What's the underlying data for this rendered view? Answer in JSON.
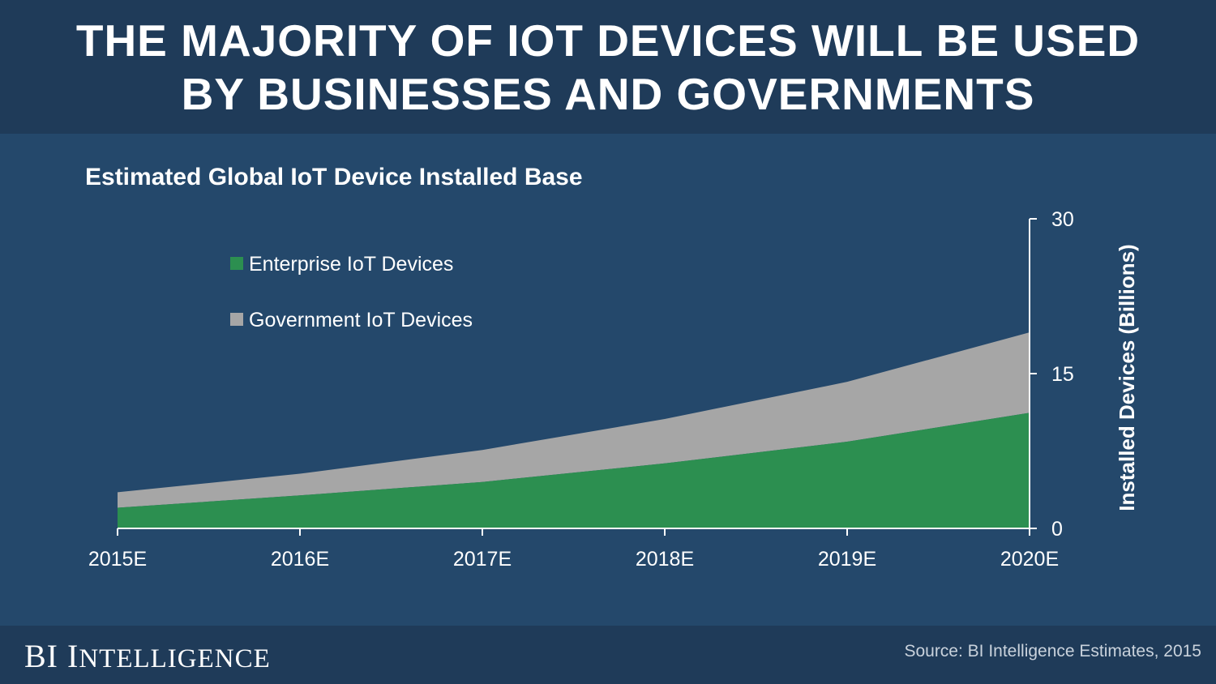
{
  "header": {
    "line1": "THE MAJORITY OF IOT DEVICES WILL BE USED",
    "line2": "BY BUSINESSES AND GOVERNMENTS"
  },
  "footer": {
    "brand_bi": "BI",
    "brand_i": "I",
    "brand_rest": "NTELLIGENCE",
    "source": "Source: BI Intelligence Estimates, 2015"
  },
  "colors": {
    "enterprise": "#2c8f50",
    "government": "#a6a6a6",
    "axis": "#ffffff"
  },
  "chart_data": {
    "type": "area",
    "stacked": true,
    "title": "Estimated Global IoT Device Installed Base",
    "categories": [
      "2015E",
      "2016E",
      "2017E",
      "2018E",
      "2019E",
      "2020E"
    ],
    "series": [
      {
        "name": "Enterprise IoT Devices",
        "values": [
          2.0,
          3.2,
          4.5,
          6.3,
          8.4,
          11.2
        ]
      },
      {
        "name": "Government IoT Devices",
        "values": [
          1.5,
          2.1,
          3.1,
          4.3,
          5.8,
          7.8
        ]
      }
    ],
    "xlabel": "",
    "ylabel": "Installed Devices (Billions)",
    "ylim": [
      0,
      30
    ],
    "yticks": [
      0,
      15,
      30
    ],
    "ytick_labels": [
      "0",
      "15",
      "30"
    ],
    "y_axis_position": "right",
    "legend_position": "top-left"
  }
}
